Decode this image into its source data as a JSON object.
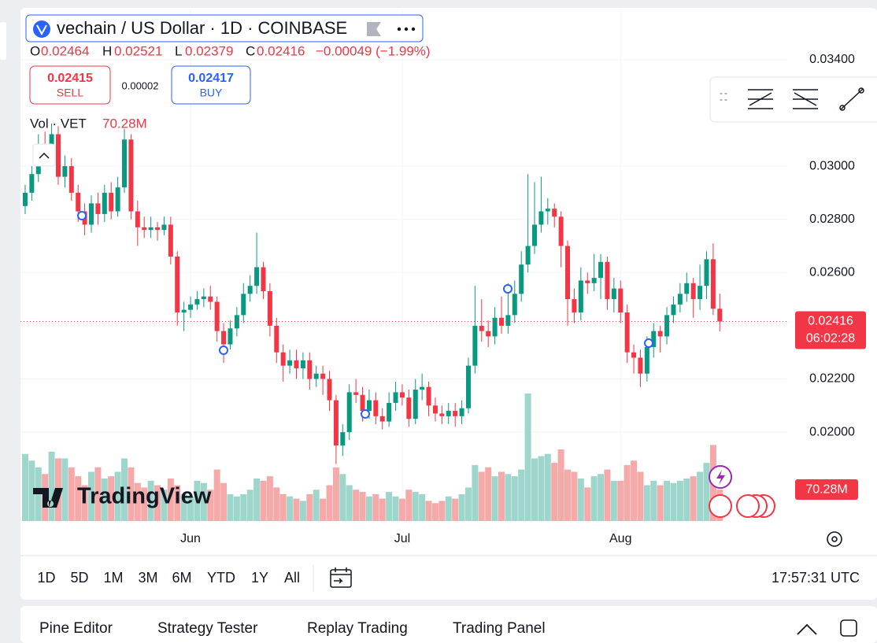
{
  "chart_data": {
    "type": "candlestick",
    "symbol": "vechain / US Dollar · 1D · COINBASE",
    "ohlc_letters": [
      "O",
      "H",
      "L",
      "C"
    ],
    "change": "−0.00049 (−1.99%)",
    "sell": {
      "price": "0.02415",
      "label": "SELL"
    },
    "spread": "0.00002",
    "buy": {
      "price": "0.02417",
      "label": "BUY"
    },
    "volume_title": "Vol · VET",
    "volume_label": "70.28M",
    "countdown": "06:02:28",
    "up_color": "#089981",
    "down_color": "#f23645",
    "volume_up_color": "#9fd6cc",
    "volume_down_color": "#f5a9a9",
    "grid": true,
    "xlim": [
      -0.71,
      115.2
    ],
    "xticks": [
      {
        "value": 25,
        "label": "Jun"
      },
      {
        "value": 57,
        "label": "Jul"
      },
      {
        "value": 90,
        "label": "Aug"
      }
    ],
    "ylim": [
      0.01666,
      0.03589
    ],
    "yticks": [
      {
        "value": 0.034,
        "label": "0.03400"
      },
      {
        "value": 0.03,
        "label": "0.03000"
      },
      {
        "value": 0.028,
        "label": "0.02800"
      },
      {
        "value": 0.026,
        "label": "0.02600"
      },
      {
        "value": 0.022,
        "label": "0.02200"
      },
      {
        "value": 0.02,
        "label": "0.02000"
      }
    ],
    "open": [
      0.0285,
      0.029,
      0.0297,
      0.0308,
      0.0305,
      0.0312,
      0.0296,
      0.03,
      0.029,
      0.0283,
      0.0278,
      0.0286,
      0.0282,
      0.029,
      0.0283,
      0.0292,
      0.031,
      0.0283,
      0.0277,
      0.0276,
      0.0277,
      0.0276,
      0.0278,
      0.0266,
      0.0245,
      0.0246,
      0.0248,
      0.025,
      0.0251,
      0.0249,
      0.0238,
      0.0233,
      0.0239,
      0.0244,
      0.0252,
      0.0255,
      0.0262,
      0.0253,
      0.024,
      0.023,
      0.0225,
      0.0227,
      0.0224,
      0.0227,
      0.022,
      0.0222,
      0.022,
      0.0212,
      0.0195,
      0.02,
      0.0215,
      0.0214,
      0.0208,
      0.0212,
      0.0206,
      0.0204,
      0.0211,
      0.0215,
      0.0213,
      0.0205,
      0.0216,
      0.0217,
      0.021,
      0.0207,
      0.0206,
      0.0208,
      0.0206,
      0.0209,
      0.0225,
      0.024,
      0.0238,
      0.0236,
      0.0243,
      0.024,
      0.0244,
      0.0252,
      0.0263,
      0.027,
      0.0278,
      0.0283,
      0.0284,
      0.0281,
      0.027,
      0.025,
      0.0245,
      0.0257,
      0.0256,
      0.0258,
      0.0264,
      0.025,
      0.0254,
      0.0245,
      0.023,
      0.0228,
      0.0222,
      0.0232,
      0.0238,
      0.0236,
      0.0244,
      0.0248,
      0.0252,
      0.0256,
      0.025,
      0.0255,
      0.0265,
      0.02464
    ],
    "high": [
      0.0293,
      0.03,
      0.0312,
      0.0313,
      0.0316,
      0.0315,
      0.0304,
      0.0303,
      0.0293,
      0.0286,
      0.0289,
      0.029,
      0.0293,
      0.0294,
      0.0296,
      0.0314,
      0.0312,
      0.0287,
      0.0281,
      0.0281,
      0.0279,
      0.0281,
      0.0281,
      0.0268,
      0.0249,
      0.0251,
      0.0253,
      0.0254,
      0.0255,
      0.0251,
      0.0241,
      0.0242,
      0.0247,
      0.0256,
      0.0259,
      0.0275,
      0.0264,
      0.0256,
      0.0243,
      0.0233,
      0.0231,
      0.0231,
      0.023,
      0.023,
      0.0225,
      0.0225,
      0.0223,
      0.0214,
      0.0203,
      0.0218,
      0.022,
      0.0217,
      0.0216,
      0.0215,
      0.0209,
      0.0215,
      0.0219,
      0.0218,
      0.0216,
      0.022,
      0.0222,
      0.0219,
      0.0213,
      0.021,
      0.0211,
      0.0211,
      0.0212,
      0.0228,
      0.0255,
      0.025,
      0.0242,
      0.0247,
      0.0251,
      0.0256,
      0.0257,
      0.0268,
      0.0297,
      0.0294,
      0.0296,
      0.0288,
      0.0286,
      0.0283,
      0.0272,
      0.0254,
      0.0262,
      0.026,
      0.0267,
      0.0267,
      0.0266,
      0.0258,
      0.0257,
      0.0248,
      0.0233,
      0.0231,
      0.0236,
      0.0241,
      0.024,
      0.0247,
      0.0251,
      0.0256,
      0.026,
      0.0258,
      0.0263,
      0.0268,
      0.0271,
      0.02521
    ],
    "low": [
      0.0282,
      0.0287,
      0.0294,
      0.03,
      0.0302,
      0.0293,
      0.0292,
      0.0287,
      0.0279,
      0.0274,
      0.0275,
      0.0278,
      0.0279,
      0.028,
      0.0281,
      0.029,
      0.028,
      0.027,
      0.0273,
      0.0273,
      0.0272,
      0.0274,
      0.0263,
      0.024,
      0.0238,
      0.0243,
      0.0246,
      0.0247,
      0.0246,
      0.0234,
      0.0226,
      0.0231,
      0.0236,
      0.0241,
      0.0249,
      0.0252,
      0.025,
      0.0236,
      0.0226,
      0.0219,
      0.0222,
      0.022,
      0.022,
      0.0216,
      0.0217,
      0.0214,
      0.0208,
      0.0188,
      0.0191,
      0.0197,
      0.0211,
      0.0204,
      0.0205,
      0.0203,
      0.0201,
      0.0202,
      0.0208,
      0.021,
      0.0202,
      0.0203,
      0.0212,
      0.0206,
      0.0204,
      0.0203,
      0.0203,
      0.0202,
      0.0203,
      0.0207,
      0.0222,
      0.0234,
      0.0232,
      0.0233,
      0.0237,
      0.0237,
      0.0241,
      0.0249,
      0.026,
      0.0267,
      0.0275,
      0.0278,
      0.0277,
      0.0262,
      0.024,
      0.0241,
      0.0242,
      0.0252,
      0.0253,
      0.025,
      0.0246,
      0.0245,
      0.0241,
      0.0226,
      0.0222,
      0.0217,
      0.0219,
      0.0228,
      0.023,
      0.0233,
      0.0241,
      0.0245,
      0.0249,
      0.0243,
      0.0246,
      0.025,
      0.0244,
      0.02379
    ],
    "close": [
      0.029,
      0.0297,
      0.0308,
      0.0305,
      0.0312,
      0.0296,
      0.03,
      0.029,
      0.0283,
      0.0278,
      0.0286,
      0.0282,
      0.029,
      0.0283,
      0.0292,
      0.031,
      0.0283,
      0.0277,
      0.0276,
      0.0277,
      0.0276,
      0.0278,
      0.0266,
      0.0245,
      0.0246,
      0.0248,
      0.025,
      0.0251,
      0.0249,
      0.0238,
      0.0233,
      0.0239,
      0.0244,
      0.0252,
      0.0255,
      0.0262,
      0.0253,
      0.024,
      0.023,
      0.0225,
      0.0227,
      0.0224,
      0.0227,
      0.022,
      0.0222,
      0.022,
      0.0212,
      0.0195,
      0.02,
      0.0215,
      0.0214,
      0.0208,
      0.0212,
      0.0206,
      0.0204,
      0.0211,
      0.0215,
      0.0213,
      0.0205,
      0.0216,
      0.0217,
      0.021,
      0.0207,
      0.0206,
      0.0208,
      0.0206,
      0.0209,
      0.0225,
      0.024,
      0.0238,
      0.0236,
      0.0243,
      0.024,
      0.0244,
      0.0252,
      0.0263,
      0.027,
      0.0278,
      0.0283,
      0.0284,
      0.0281,
      0.027,
      0.025,
      0.0245,
      0.0257,
      0.0256,
      0.0258,
      0.0264,
      0.025,
      0.0254,
      0.0245,
      0.023,
      0.0228,
      0.0222,
      0.0232,
      0.0238,
      0.0236,
      0.0244,
      0.0248,
      0.0252,
      0.0256,
      0.025,
      0.0255,
      0.0265,
      0.02464,
      0.02416
    ],
    "volume": [
      150,
      135,
      120,
      105,
      155,
      140,
      140,
      120,
      100,
      80,
      110,
      120,
      95,
      100,
      110,
      140,
      120,
      85,
      75,
      90,
      80,
      70,
      95,
      80,
      60,
      55,
      90,
      85,
      70,
      115,
      85,
      60,
      55,
      60,
      70,
      95,
      90,
      100,
      75,
      60,
      55,
      50,
      45,
      60,
      70,
      50,
      80,
      120,
      105,
      80,
      70,
      65,
      55,
      60,
      50,
      65,
      55,
      50,
      70,
      65,
      60,
      45,
      40,
      45,
      55,
      50,
      60,
      75,
      125,
      110,
      120,
      100,
      110,
      105,
      100,
      115,
      285,
      140,
      145,
      150,
      130,
      160,
      115,
      110,
      95,
      75,
      100,
      105,
      115,
      90,
      90,
      125,
      135,
      110,
      80,
      90,
      80,
      90,
      85,
      90,
      95,
      100,
      110,
      130,
      170,
      70.28
    ]
  },
  "ui": {
    "watermark": "TradingView",
    "timeframes": [
      "1D",
      "5D",
      "1M",
      "3M",
      "6M",
      "YTD",
      "1Y",
      "All"
    ],
    "clock": "17:57:31 UTC",
    "tabs": [
      "Pine Editor",
      "Strategy Tester",
      "Replay Trading",
      "Trading Panel"
    ]
  }
}
